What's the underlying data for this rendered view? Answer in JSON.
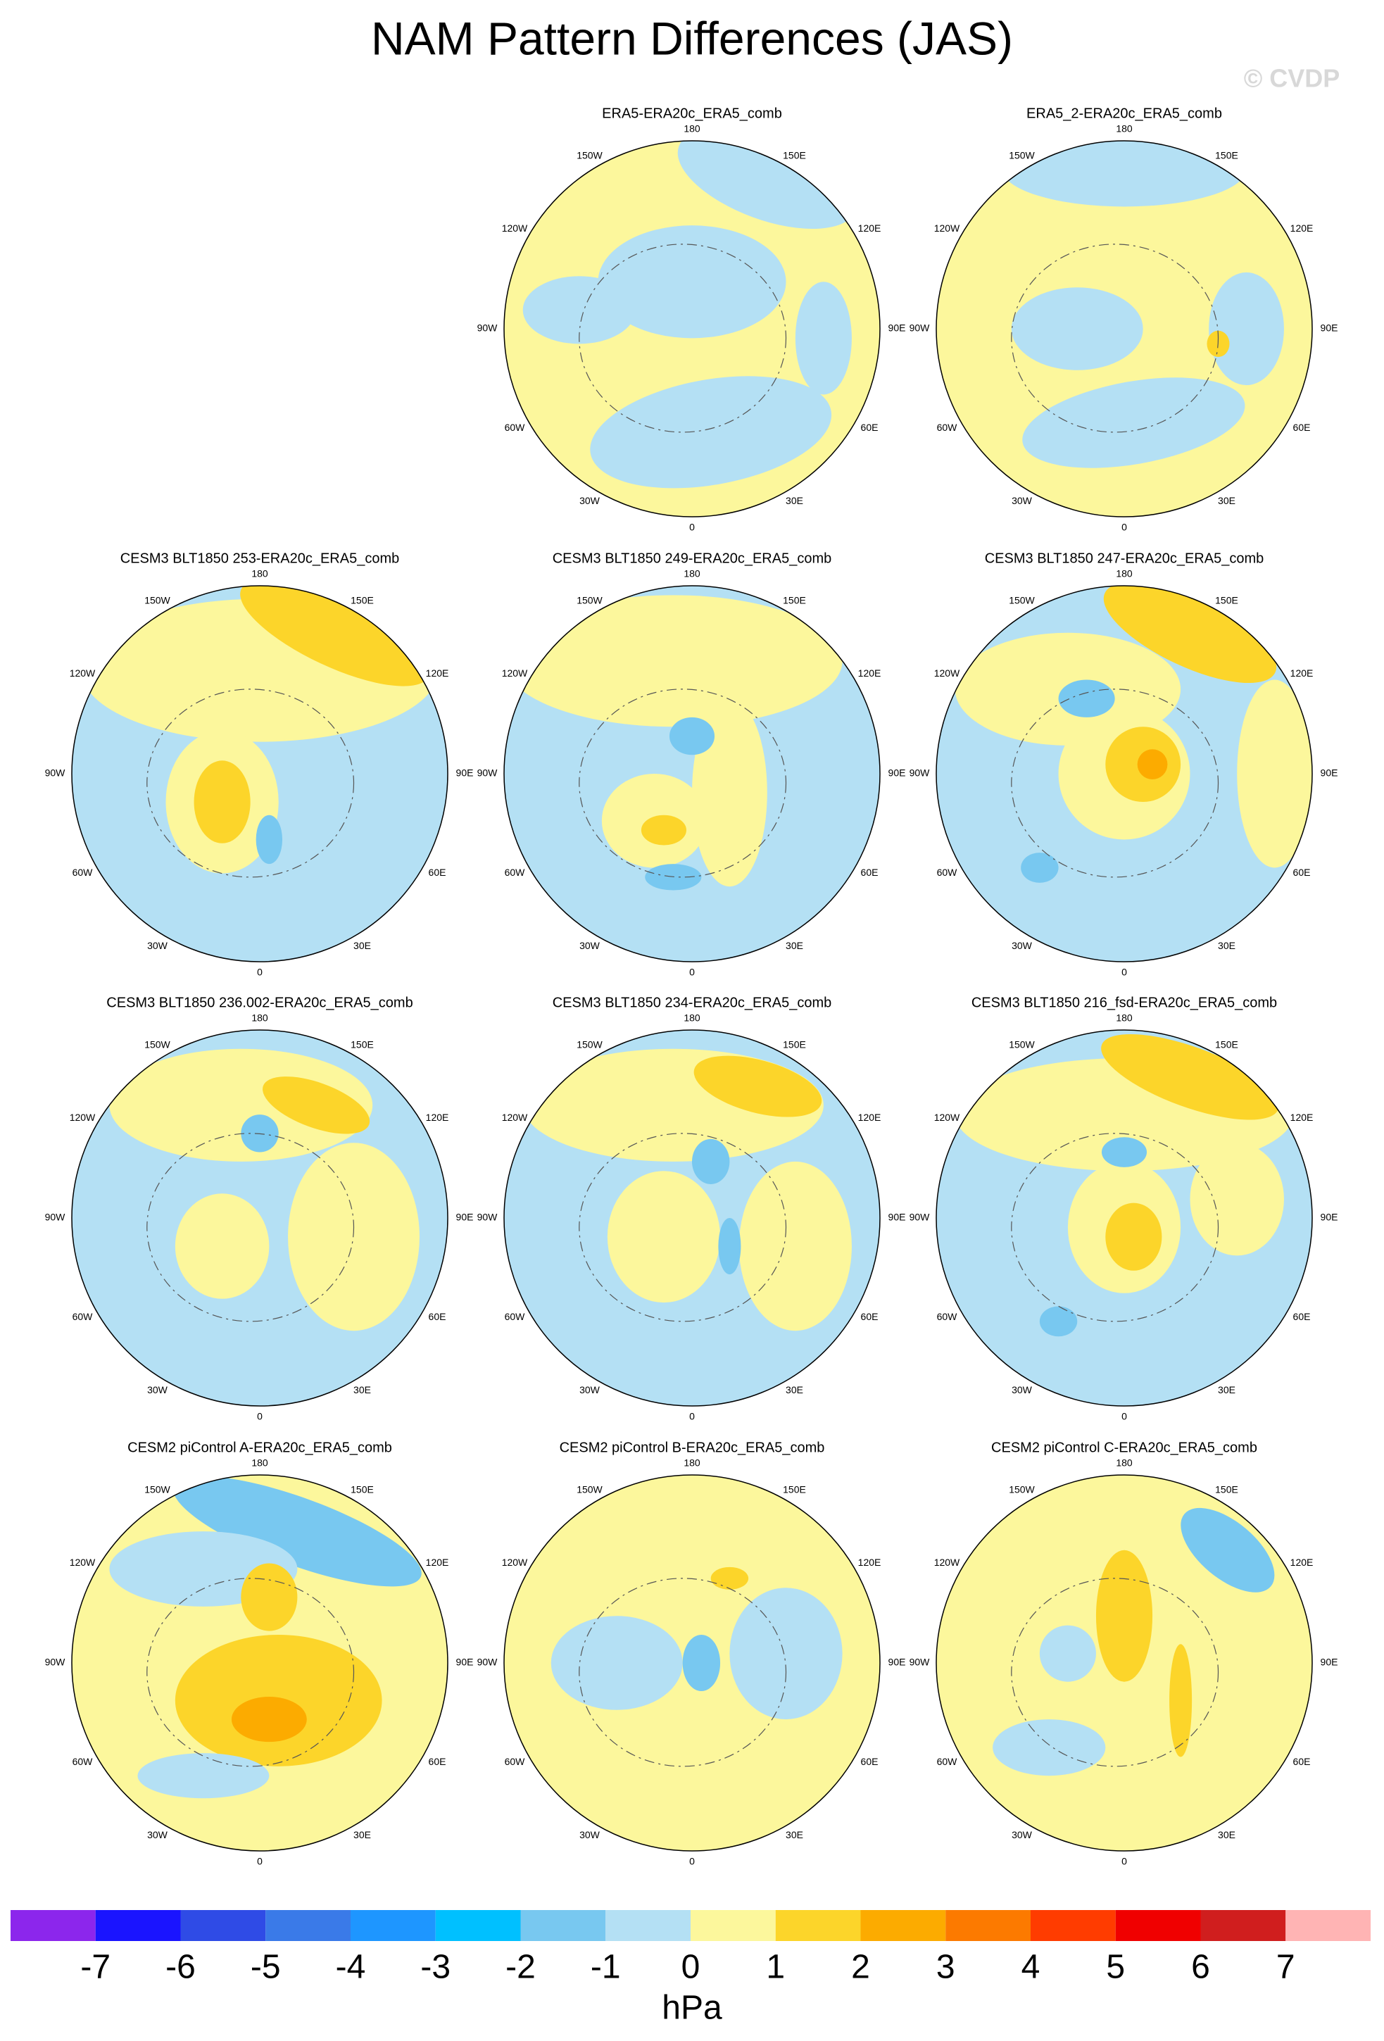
{
  "title": "NAM Pattern Differences (JAS)",
  "watermark": "© CVDP",
  "lon_labels": [
    "180",
    "150E",
    "120E",
    "90E",
    "60E",
    "30E",
    "0",
    "30W",
    "60W",
    "90W",
    "120W",
    "150W"
  ],
  "panels": [
    {
      "title": "ERA5-ERA20c_ERA5_comb"
    },
    {
      "title": "ERA5_2-ERA20c_ERA5_comb"
    },
    {
      "title": "CESM3 BLT1850 253-ERA20c_ERA5_comb"
    },
    {
      "title": "CESM3 BLT1850 249-ERA20c_ERA5_comb"
    },
    {
      "title": "CESM3 BLT1850 247-ERA20c_ERA5_comb"
    },
    {
      "title": "CESM3 BLT1850 236.002-ERA20c_ERA5_comb"
    },
    {
      "title": "CESM3 BLT1850 234-ERA20c_ERA5_comb"
    },
    {
      "title": "CESM3 BLT1850 216_fsd-ERA20c_ERA5_comb"
    },
    {
      "title": "CESM2 piControl A-ERA20c_ERA5_comb"
    },
    {
      "title": "CESM2 piControl B-ERA20c_ERA5_comb"
    },
    {
      "title": "CESM2 piControl C-ERA20c_ERA5_comb"
    }
  ],
  "colorbar": {
    "levels": [
      -7,
      -6,
      -5,
      -4,
      -3,
      -2,
      -1,
      0,
      1,
      2,
      3,
      4,
      5,
      6,
      7
    ],
    "colors": [
      "#8c26ec",
      "#1a14ff",
      "#2f4be6",
      "#3a7ae8",
      "#1e96ff",
      "#00c0ff",
      "#78c8f0",
      "#b4e0f4",
      "#fcf79c",
      "#fcd52a",
      "#fcab00",
      "#fc7a00",
      "#ff3c00",
      "#f00000",
      "#d01e1e",
      "#ffb4b4"
    ],
    "units": "hPa"
  }
}
